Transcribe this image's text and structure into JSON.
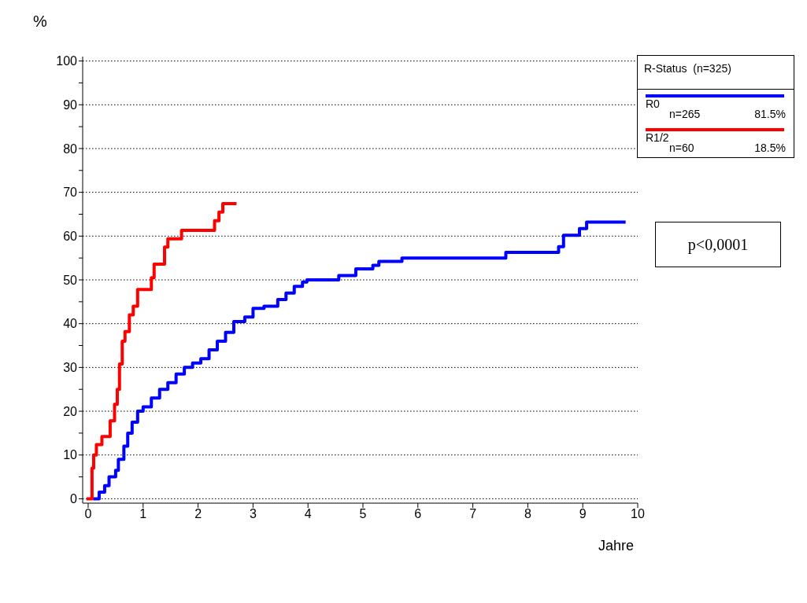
{
  "chart_data": {
    "type": "step",
    "xlabel": "Jahre",
    "ylabel": "%",
    "legend_title": "R-Status  (n=325)",
    "legend": "top right",
    "grid": "y",
    "line_style": "solid",
    "marker": "none",
    "xlim": [
      -0.1,
      10
    ],
    "xticks": [
      0,
      1,
      2,
      3,
      4,
      5,
      6,
      7,
      8,
      9,
      10
    ],
    "ylim": [
      -1,
      101
    ],
    "yticks": [
      0,
      {
        "value": 5,
        "label": null
      },
      10,
      {
        "value": 15,
        "label": null
      },
      20,
      {
        "value": 25,
        "label": null
      },
      30,
      {
        "value": 35,
        "label": null
      },
      40,
      {
        "value": 45,
        "label": null
      },
      50,
      {
        "value": 55,
        "label": null
      },
      60,
      {
        "value": 65,
        "label": null
      },
      70,
      {
        "value": 75,
        "label": null
      },
      80,
      {
        "value": 85,
        "label": null
      },
      90,
      {
        "value": 95,
        "label": null
      },
      100
    ],
    "series": [
      {
        "name": "R0",
        "color": "#0000ff",
        "x": [
          0.09,
          0.2,
          0.3,
          0.38,
          0.5,
          0.55,
          0.65,
          0.72,
          0.8,
          0.9,
          1.0,
          1.15,
          1.3,
          1.45,
          1.6,
          1.75,
          1.9,
          2.05,
          2.2,
          2.35,
          2.5,
          2.65,
          2.85,
          3.0,
          3.2,
          3.45,
          3.6,
          3.75,
          3.9,
          3.98,
          4.56,
          4.87,
          5.18,
          5.29,
          5.71,
          7.6,
          8.56,
          8.65,
          8.94,
          9.07,
          9.78
        ],
        "values": [
          0,
          1.5,
          3,
          5,
          6.5,
          9,
          12,
          15,
          17.5,
          20,
          21,
          23,
          25,
          26.5,
          28.5,
          30,
          31,
          32,
          34,
          36,
          38,
          40.5,
          41.5,
          43.5,
          44,
          45.5,
          47,
          48.5,
          49.5,
          50,
          51,
          52.5,
          53.3,
          54.2,
          55,
          56.3,
          57.6,
          60.2,
          61.7,
          63.2,
          63.2
        ]
      },
      {
        "name": "R1/2",
        "color": "#ff0000",
        "x": [
          -0.03,
          0.07,
          0.1,
          0.15,
          0.25,
          0.4,
          0.48,
          0.53,
          0.57,
          0.62,
          0.67,
          0.75,
          0.82,
          0.9,
          1.15,
          1.2,
          1.39,
          1.45,
          1.7,
          2.24,
          2.3,
          2.38,
          2.45,
          2.7
        ],
        "values": [
          0,
          7,
          10,
          12.4,
          14.2,
          17.8,
          21.6,
          25,
          30.8,
          36,
          38.2,
          42,
          44,
          47.8,
          50.5,
          53.6,
          57.5,
          59.4,
          61.3,
          61.3,
          63.5,
          65.5,
          67.4,
          67.4
        ]
      }
    ],
    "annotations": [
      "n=265",
      "81.5%",
      "n=60",
      "18.5%",
      "p<0,0001"
    ]
  }
}
